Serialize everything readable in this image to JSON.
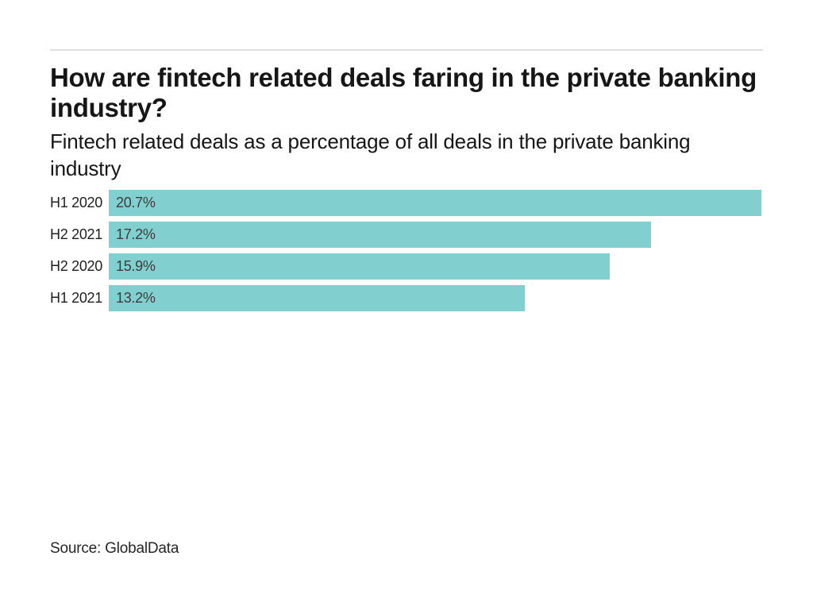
{
  "header": {
    "title": "How are fintech related deals faring in the private banking industry?",
    "title_lines": [
      "How are fintech related deals faring in the private banking",
      "industry?"
    ],
    "subtitle": "Fintech related deals as a percentage of all deals in the private banking industry",
    "subtitle_lines": [
      "Fintech related deals as a percentage of all deals in the private banking",
      "industry"
    ]
  },
  "chart_data": {
    "type": "bar",
    "orientation": "horizontal",
    "title": "How are fintech related deals faring in the private banking industry?",
    "subtitle": "Fintech related deals as a percentage of all deals in the private banking industry",
    "categories": [
      "H1 2020",
      "H2 2021",
      "H2 2020",
      "H1 2021"
    ],
    "values": [
      20.7,
      17.2,
      15.9,
      13.2
    ],
    "value_labels": [
      "20.7%",
      "17.2%",
      "15.9%",
      "13.2%"
    ],
    "xlim": [
      0,
      20.7
    ],
    "bar_color": "#82cfd0",
    "grid": false,
    "legend": false,
    "category_label_position": "left",
    "value_label_position": "inside-left"
  },
  "footer": {
    "source": "Source: GlobalData"
  },
  "colors": {
    "background": "#ffffff",
    "divider": "#e1e1e1",
    "text": "#161616",
    "bar": "#82cfd0"
  }
}
